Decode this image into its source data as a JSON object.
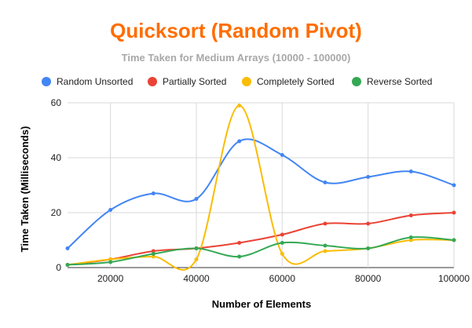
{
  "chart_data": {
    "type": "line",
    "title": "Quicksort (Random Pivot)",
    "subtitle": "Time Taken for Medium Arrays (10000 - 100000)",
    "xlabel": "Number of Elements",
    "ylabel": "Time Taken (Milliseconds)",
    "xlim": [
      10000,
      100000
    ],
    "ylim": [
      0,
      60
    ],
    "xticks": [
      20000,
      40000,
      60000,
      80000,
      100000
    ],
    "yticks": [
      0,
      20,
      40,
      60
    ],
    "grid": true,
    "legend_position": "top",
    "x": [
      10000,
      20000,
      30000,
      40000,
      50000,
      60000,
      70000,
      80000,
      90000,
      100000
    ],
    "series": [
      {
        "name": "Random Unsorted",
        "color": "#4285f4",
        "values": [
          7,
          21,
          27,
          25,
          46,
          41,
          31,
          33,
          35,
          30
        ]
      },
      {
        "name": "Partially Sorted",
        "color": "#ea4335",
        "values": [
          1,
          3,
          6,
          7,
          9,
          12,
          16,
          16,
          19,
          20
        ]
      },
      {
        "name": "Completely Sorted",
        "color": "#fbbc04",
        "values": [
          1,
          3,
          4,
          3,
          59,
          5,
          6,
          7,
          10,
          10
        ]
      },
      {
        "name": "Reverse Sorted",
        "color": "#34a853",
        "values": [
          1,
          2,
          5,
          7,
          4,
          9,
          8,
          7,
          11,
          10
        ]
      }
    ]
  }
}
